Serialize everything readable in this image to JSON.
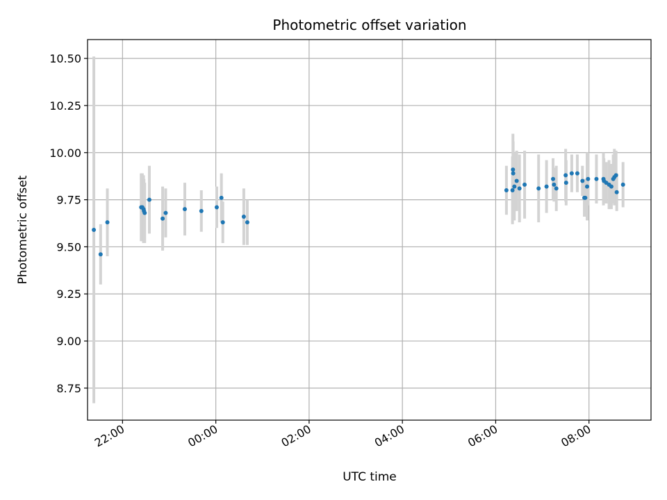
{
  "chart_data": {
    "type": "scatter",
    "title": "Photometric offset variation",
    "xlabel": "UTC time",
    "ylabel": "Photometric offset",
    "grid": true,
    "x_unit": "UTC time (hours; values past 24 are on the following day)",
    "xlim": [
      "21:15",
      "09:20"
    ],
    "xlim_hours": [
      21.25,
      33.33
    ],
    "ylim": [
      8.58,
      10.6
    ],
    "x_ticks": [
      {
        "label": "22:00",
        "hour": 22
      },
      {
        "label": "00:00",
        "hour": 24
      },
      {
        "label": "02:00",
        "hour": 26
      },
      {
        "label": "04:00",
        "hour": 28
      },
      {
        "label": "06:00",
        "hour": 30
      },
      {
        "label": "08:00",
        "hour": 32
      }
    ],
    "y_ticks": [
      "8.75",
      "9.00",
      "9.25",
      "9.50",
      "9.75",
      "10.00",
      "10.25",
      "10.50"
    ],
    "colors": {
      "points": "#1f77b4",
      "errorbars": "#d3d3d3",
      "grid": "#b0b0b0"
    },
    "series": [
      {
        "x_hours": [
          21.385,
          21.53,
          21.675,
          22.4,
          22.425,
          22.45,
          22.46,
          22.475,
          22.575,
          22.86,
          22.925,
          23.335,
          23.69,
          24.02,
          24.12,
          24.15,
          24.6,
          24.675,
          30.23,
          30.36,
          30.37,
          30.375,
          30.4,
          30.45,
          30.51,
          30.62,
          30.92,
          31.09,
          31.23,
          31.25,
          31.3,
          31.5,
          31.51,
          31.63,
          31.75,
          31.86,
          31.9,
          31.92,
          31.96,
          31.98,
          32.16,
          32.31,
          32.32,
          32.37,
          32.43,
          32.48,
          32.52,
          32.545,
          32.58,
          32.595,
          32.73
        ],
        "y": [
          9.59,
          9.46,
          9.63,
          9.71,
          9.71,
          9.7,
          9.69,
          9.68,
          9.75,
          9.65,
          9.68,
          9.7,
          9.69,
          9.71,
          9.76,
          9.63,
          9.66,
          9.63,
          9.8,
          9.8,
          9.91,
          9.89,
          9.82,
          9.85,
          9.81,
          9.83,
          9.81,
          9.82,
          9.86,
          9.83,
          9.81,
          9.88,
          9.84,
          9.89,
          9.89,
          9.85,
          9.76,
          9.76,
          9.82,
          9.86,
          9.86,
          9.86,
          9.85,
          9.84,
          9.83,
          9.82,
          9.86,
          9.87,
          9.88,
          9.79,
          9.83
        ],
        "yerr": [
          0.92,
          0.16,
          0.18,
          0.18,
          0.18,
          0.18,
          0.17,
          0.16,
          0.18,
          0.17,
          0.13,
          0.14,
          0.11,
          0.11,
          0.13,
          0.11,
          0.15,
          0.12,
          0.13,
          0.18,
          0.19,
          0.17,
          0.18,
          0.16,
          0.18,
          0.18,
          0.18,
          0.14,
          0.11,
          0.09,
          0.12,
          0.14,
          0.12,
          0.1,
          0.1,
          0.08,
          0.1,
          0.1,
          0.18,
          0.14,
          0.13,
          0.14,
          0.12,
          0.11,
          0.13,
          0.12,
          0.13,
          0.15,
          0.13,
          0.1,
          0.12
        ]
      }
    ]
  }
}
